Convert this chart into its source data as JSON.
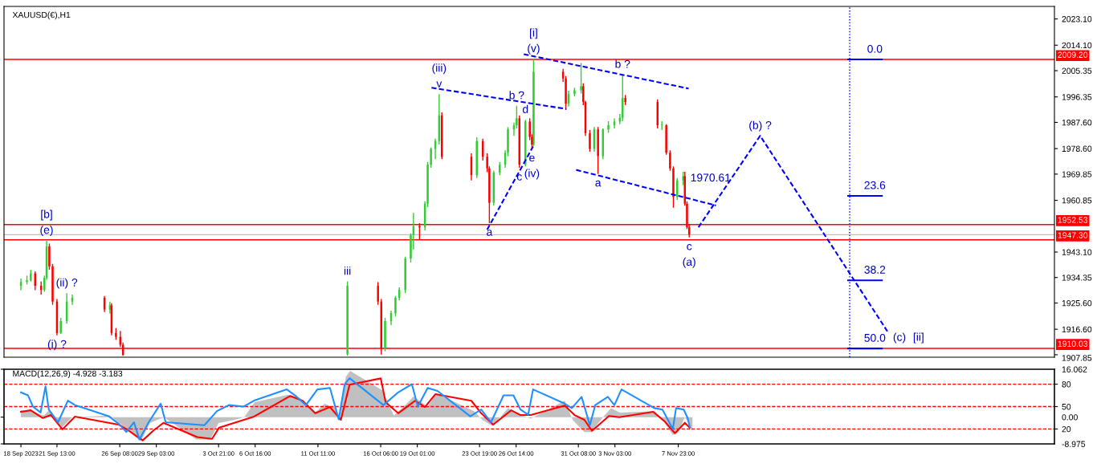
{
  "chart_data": [
    {
      "type": "candlestick",
      "title": "XAUUSD(€),H1",
      "xlim": [
        "2023-09-17T12:00",
        "2023-12-06T16:00"
      ],
      "ylim": [
        1907.0,
        2027.4
      ],
      "tick_labels": "y",
      "yticks": [
        {
          "value": 2023.1,
          "label": "2023.10"
        },
        {
          "value": 2014.1,
          "label": "2014.10"
        },
        {
          "value": 2005.35,
          "label": "2005.35"
        },
        {
          "value": 1996.35,
          "label": "1996.35"
        },
        {
          "value": 1987.6,
          "label": "1987.60"
        },
        {
          "value": 1978.6,
          "label": "1978.60"
        },
        {
          "value": 1969.85,
          "label": "1969.85"
        },
        {
          "value": 1960.85,
          "label": "1960.85"
        },
        {
          "value": 1943.1,
          "label": "1943.10"
        },
        {
          "value": 1934.35,
          "label": "1934.35"
        },
        {
          "value": 1925.6,
          "label": "1925.60"
        },
        {
          "value": 1916.6,
          "label": "1916.60"
        },
        {
          "value": 1907.85,
          "label": "1907.85"
        }
      ],
      "series": [
        {
          "color": "#32cd32",
          "x": [
            "2023-09-18T19:00",
            "2023-09-19T06:00",
            "2023-09-19T13:00",
            "2023-09-20T14:00",
            "2023-09-20T18:00",
            "2023-09-21T20:00",
            "2023-09-22T07:00",
            "2023-09-22T17:00",
            "2023-09-25T14:00",
            "2023-10-13T17:00",
            "2023-10-16T14:00",
            "2023-10-17T01:00",
            "2023-10-17T09:00",
            "2023-10-17T16:00",
            "2023-10-18T03:00",
            "2023-10-18T13:00",
            "2023-10-18T18:00",
            "2023-10-19T15:00",
            "2023-10-19T20:00",
            "2023-10-20T02:00",
            "2023-10-20T10:00",
            "2023-10-20T17:00",
            "2023-10-23T14:00",
            "2023-10-24T21:00",
            "2023-10-25T08:00",
            "2023-10-25T18:00",
            "2023-10-25T23:00",
            "2023-10-26T10:00",
            "2023-10-26T15:00",
            "2023-10-27T07:00",
            "2023-10-27T22:00",
            "2023-10-30T14:00",
            "2023-10-31T01:00",
            "2023-10-31T13:00",
            "2023-11-01T13:00",
            "2023-11-02T05:00",
            "2023-11-02T15:00",
            "2023-11-03T02:00",
            "2023-11-03T12:00",
            "2023-11-03T17:00",
            "2023-11-06T17:00",
            "2023-11-07T21:00",
            "2023-11-08T08:00"
          ],
          "ohlc": [
            [
              1931.5,
              1934,
              1930,
              1932.8
            ],
            [
              1932.8,
              1935,
              1932,
              1933.4
            ],
            [
              1933.4,
              1937,
              1933,
              1935.8
            ],
            [
              1930.1,
              1935,
              1929.5,
              1934.2
            ],
            [
              1934.2,
              1947.1,
              1933.5,
              1945.0
            ],
            [
              1915.3,
              1920.5,
              1915,
              1919.4
            ],
            [
              1919.4,
              1929,
              1918.5,
              1926.1
            ],
            [
              1926.1,
              1928.5,
              1925,
              1927.4
            ],
            [
              1923.4,
              1926,
              1922,
              1924.8
            ],
            [
              1908,
              1933,
              1907.5,
              1931.5
            ],
            [
              1910,
              1920.5,
              1909,
              1919.4
            ],
            [
              1919.4,
              1923,
              1918,
              1922.1
            ],
            [
              1922.1,
              1928,
              1921,
              1927.4
            ],
            [
              1927.4,
              1931,
              1926.5,
              1930.1
            ],
            [
              1930.1,
              1941.5,
              1929,
              1940.9
            ],
            [
              1940.9,
              1949.5,
              1939.5,
              1948.9
            ],
            [
              1948.9,
              1956.5,
              1944,
              1952
            ],
            [
              1951.6,
              1960.5,
              1950.5,
              1959.7
            ],
            [
              1959.7,
              1974,
              1958.5,
              1973.1
            ],
            [
              1973.1,
              1979,
              1972,
              1978.5
            ],
            [
              1978.5,
              1982,
              1975,
              1981.2
            ],
            [
              1981.2,
              1997.3,
              1980,
              1990
            ],
            [
              1969.5,
              1982.5,
              1968.5,
              1981.2
            ],
            [
              1960,
              1971,
              1959,
              1970.4
            ],
            [
              1970.4,
              1974,
              1969.5,
              1973.1
            ],
            [
              1973.1,
              1978,
              1972,
              1977.2
            ],
            [
              1977.2,
              1986,
              1976,
              1985.2
            ],
            [
              1985.2,
              1987.5,
              1983,
              1986.6
            ],
            [
              1986.6,
              1993.3,
              1985.5,
              1989
            ],
            [
              1973.1,
              1988.5,
              1972.5,
              1987.9
            ],
            [
              1980,
              2009.4,
              1979.5,
              2005
            ],
            [
              1994,
              1998.5,
              1993,
              1997.3
            ],
            [
              1997.3,
              1999.5,
              1996.5,
              1998.6
            ],
            [
              1998.6,
              2008.0,
              1997.5,
              2000
            ],
            [
              1978.5,
              1986,
              1977.5,
              1985.2
            ],
            [
              1976,
              1985.5,
              1975,
              1985.2
            ],
            [
              1985.2,
              1988,
              1984,
              1986.6
            ],
            [
              1986.6,
              1989,
              1985.5,
              1987.9
            ],
            [
              1987.9,
              1990.5,
              1987,
              1989.2
            ],
            [
              1989.2,
              2004.0,
              1988,
              1996
            ],
            [
              1986.6,
              1988,
              1985,
              1986.8
            ],
            [
              1962,
              1968.5,
              1961,
              1967.7
            ],
            [
              1967.7,
              1970.61,
              1966,
              1969.1
            ]
          ]
        },
        {
          "color": "#ff0000",
          "x": [
            "2023-09-19T21:00",
            "2023-09-20T08:00",
            "2023-09-20T23:00",
            "2023-09-21T05:00",
            "2023-09-21T13:00",
            "2023-09-25T04:00",
            "2023-09-25T17:00",
            "2023-09-26T01:00",
            "2023-09-26T09:00",
            "2023-09-26T14:00",
            "2023-10-16T01:00",
            "2023-10-16T07:00",
            "2023-10-19T05:00",
            "2023-10-20T22:00",
            "2023-10-23T04:00",
            "2023-10-24T01:00",
            "2023-10-24T09:00",
            "2023-10-24T13:00",
            "2023-10-26T20:00",
            "2023-10-27T15:00",
            "2023-10-27T19:00",
            "2023-10-30T04:00",
            "2023-10-30T09:00",
            "2023-10-31T17:00",
            "2023-10-31T21:00",
            "2023-11-01T05:00",
            "2023-11-01T20:00",
            "2023-11-03T22:00",
            "2023-11-06T09:00",
            "2023-11-07T01:00",
            "2023-11-07T08:00",
            "2023-11-07T14:00",
            "2023-11-08T11:00",
            "2023-11-08T15:00",
            "2023-11-08T19:00"
          ],
          "ohlc": [
            [
              1935.8,
              1936.5,
              1930,
              1931.5
            ],
            [
              1931.5,
              1933,
              1928.5,
              1930.1
            ],
            [
              1945.0,
              1946,
              1937,
              1938.2
            ],
            [
              1938.2,
              1939,
              1925,
              1926.1
            ],
            [
              1926.1,
              1927,
              1914.5,
              1915.3
            ],
            [
              1927.4,
              1928,
              1922.5,
              1923.4
            ],
            [
              1924.8,
              1925.5,
              1914.5,
              1915.3
            ],
            [
              1915.3,
              1917,
              1913,
              1914.0
            ],
            [
              1914.0,
              1916,
              1910.5,
              1911.3
            ],
            [
              1911.3,
              1912,
              1907.5,
              1907.8
            ],
            [
              1931.5,
              1932.8,
              1925,
              1926.1
            ],
            [
              1926.1,
              1927,
              1907.9,
              1910
            ],
            [
              1952,
              1953,
              1947.5,
              1951.6
            ],
            [
              1990,
              1991,
              1975,
              1975.8
            ],
            [
              1975.8,
              1977,
              1967.7,
              1969.5
            ],
            [
              1981.2,
              1982,
              1974.5,
              1975.8
            ],
            [
              1975.8,
              1977,
              1970.5,
              1971.8
            ],
            [
              1971.8,
              1972.5,
              1953.0,
              1960
            ],
            [
              1989,
              1990,
              1972,
              1973.1
            ],
            [
              1987.9,
              1989,
              1981.5,
              1982.6
            ],
            [
              1982.6,
              1983.5,
              1978.5,
              1980
            ],
            [
              2005,
              2006,
              2001.5,
              2002.7
            ],
            [
              2002.7,
              2003.5,
              1991.9,
              1994
            ],
            [
              2000,
              2001,
              1993.5,
              1994.6
            ],
            [
              1994.6,
              1995,
              1983,
              1983.9
            ],
            [
              1983.9,
              1985,
              1977.5,
              1978.5
            ],
            [
              1985.2,
              1986,
              1969.9,
              1976
            ],
            [
              1996,
              1997,
              1993.5,
              1994.6
            ],
            [
              1994.6,
              1995.5,
              1985.5,
              1986.6
            ],
            [
              1986.6,
              1987,
              1976.5,
              1977.2
            ],
            [
              1977.2,
              1978,
              1971,
              1971.8
            ],
            [
              1971.8,
              1972.5,
              1958.3,
              1962
            ],
            [
              1969.1,
              1970.61,
              1959,
              1959.7
            ],
            [
              1959.7,
              1960.5,
              1951,
              1951.6
            ],
            [
              1951.6,
              1952.5,
              1948.1,
              1949.06
            ]
          ]
        },
        {
          "type": "line",
          "line_style": "dashed",
          "color": "#0000ff",
          "x": [
            "2023-10-20T03:00",
            "2023-10-30T10:00"
          ],
          "values": [
            1999.5,
            1992.2
          ]
        },
        {
          "type": "line",
          "line_style": "dashed",
          "color": "#0000ff",
          "x": [
            "2023-10-24T09:00",
            "2023-10-27T21:00"
          ],
          "values": [
            1950.8,
            1979.3
          ]
        },
        {
          "type": "line",
          "line_style": "dashed",
          "color": "#0000ff",
          "x": [
            "2023-10-27T04:00",
            "2023-11-08T18:00"
          ],
          "values": [
            2011.0,
            1999.2
          ]
        },
        {
          "type": "line",
          "line_style": "dashed",
          "color": "#0000ff",
          "x": [
            "2023-10-31T04:00",
            "2023-11-10T20:00"
          ],
          "values": [
            1971.3,
            1959.1
          ]
        },
        {
          "type": "line",
          "line_style": "dashed",
          "color": "#0000ff",
          "x": [
            "2023-11-09T12:00",
            "2023-11-14T05:00",
            "2023-11-23T22:00"
          ],
          "values": [
            1951.6,
            1983.0,
            1915.9
          ]
        },
        {
          "type": "line",
          "line_style": "solid",
          "color": "#0000ff",
          "x": [
            "2023-11-20T22:00",
            "2023-11-23T12:00"
          ],
          "values": [
            2009.2,
            2009.2
          ]
        },
        {
          "type": "line",
          "line_style": "solid",
          "color": "#0000ff",
          "x": [
            "2023-11-20T22:00",
            "2023-11-23T12:00"
          ],
          "values": [
            1962.4,
            1962.4
          ]
        },
        {
          "type": "line",
          "line_style": "solid",
          "color": "#0000ff",
          "x": [
            "2023-11-20T22:00",
            "2023-11-23T12:00"
          ],
          "values": [
            1933.4,
            1933.4
          ]
        },
        {
          "type": "line",
          "line_style": "solid",
          "color": "#0000ff",
          "x": [
            "2023-11-20T22:00",
            "2023-11-23T12:00"
          ],
          "values": [
            1910.0,
            1910.0
          ]
        }
      ],
      "ref_lines": [
        {
          "axis": "y",
          "value": 2009.2,
          "label": "2009.20",
          "color": "#ff0000"
        },
        {
          "axis": "y",
          "value": 1952.53,
          "label": "1952.53",
          "color": "#ff0000"
        },
        {
          "axis": "y",
          "value": 1947.3,
          "label": "1947.30",
          "color": "#ff0000"
        },
        {
          "axis": "y",
          "value": 1910.03,
          "label": "1910.03",
          "color": "#ff0000"
        },
        {
          "axis": "y",
          "value": 1949.06,
          "color": "#c0c0c0"
        },
        {
          "axis": "x",
          "value": "2023-11-21T01:00",
          "color": "#0000ff",
          "line_style": "dotted"
        }
      ],
      "annotations": [
        {
          "text": "(e)",
          "x": "2023-09-20T18:00",
          "y": 1947.1
        },
        {
          "text": "[b]",
          "x": "2023-09-20T18:00",
          "y": 1947.1
        },
        {
          "text": "(ii) ?",
          "x": "2023-09-22T07:00",
          "y": 1929
        },
        {
          "text": "(i) ?",
          "x": "2023-09-21T13:00",
          "y": 1914.5
        },
        {
          "text": "iii",
          "x": "2023-10-13T17:00",
          "y": 1933
        },
        {
          "text": "v",
          "x": "2023-10-20T17:00",
          "y": 1997.3
        },
        {
          "text": "(iii)",
          "x": "2023-10-20T17:00",
          "y": 1997.3
        },
        {
          "text": "b ?",
          "x": "2023-10-26T15:00",
          "y": 1993.3
        },
        {
          "text": "d",
          "x": "2023-10-27T07:00",
          "y": 1988.5
        },
        {
          "text": "(v)",
          "x": "2023-10-27T22:00",
          "y": 2009.4
        },
        {
          "text": "[i]",
          "x": "2023-10-27T22:00",
          "y": 2009.4
        },
        {
          "text": "c",
          "x": "2023-10-26T20:00",
          "y": 1972
        },
        {
          "text": "e",
          "x": "2023-10-27T19:00",
          "y": 1978.5
        },
        {
          "text": "(iv)",
          "x": "2023-10-27T19:00",
          "y": 1978.5
        },
        {
          "text": "a",
          "x": "2023-10-24T13:00",
          "y": 1953.0
        },
        {
          "text": "a",
          "x": "2023-11-01T20:00",
          "y": 1969.9
        },
        {
          "text": "b ?",
          "x": "2023-11-03T17:00",
          "y": 2004.0
        },
        {
          "text": "c",
          "x": "2023-11-08T19:00",
          "y": 1948.1
        },
        {
          "text": "(a)",
          "x": "2023-11-08T19:00",
          "y": 1948.1
        },
        {
          "text": "(b) ?",
          "x": "2023-11-14T05:00",
          "y": 1983.0
        },
        {
          "text": "(c)",
          "x": "2023-11-23T22:00",
          "y": 1915.9
        },
        {
          "text": "[ii]",
          "x": "2023-11-23T22:00",
          "y": 1915.9
        },
        {
          "text": "0.0",
          "x": "2023-11-22T23:00",
          "y": 2009.2
        },
        {
          "text": "23.6",
          "x": "2023-11-22T23:00",
          "y": 1962.4
        },
        {
          "text": "38.2",
          "x": "2023-11-22T23:00",
          "y": 1933.4
        },
        {
          "text": "50.0",
          "x": "2023-11-22T23:00",
          "y": 1910.0
        },
        {
          "text": "1970.61",
          "x": "2023-11-08T11:00",
          "y": 1970.61
        }
      ]
    },
    {
      "type": "line",
      "title": "MACD(12,26,9) -4.928 -3.183",
      "xlim": [
        "2023-09-17T12:00",
        "2023-12-06T16:00"
      ],
      "ylim": [
        -8.975,
        16.062
      ],
      "xticks": [
        {
          "value": "2023-09-18T19:00",
          "label": "18 Sep 2023"
        },
        {
          "value": "2023-09-21T13:00",
          "label": "21 Sep 13:00"
        },
        {
          "value": "2023-09-26T08:00",
          "label": "26 Sep 08:00"
        },
        {
          "value": "2023-09-29T03:00",
          "label": "29 Sep 03:00"
        },
        {
          "value": "2023-10-03T21:00",
          "label": "3 Oct 21:00"
        },
        {
          "value": "2023-10-06T16:00",
          "label": "6 Oct 16:00"
        },
        {
          "value": "2023-10-11T11:00",
          "label": "11 Oct 11:00"
        },
        {
          "value": "2023-10-16T06:00",
          "label": "16 Oct 06:00"
        },
        {
          "value": "2023-10-19T01:00",
          "label": "19 Oct 01:00"
        },
        {
          "value": "2023-10-23T19:00",
          "label": "23 Oct 19:00"
        },
        {
          "value": "2023-10-26T14:00",
          "label": "26 Oct 14:00"
        },
        {
          "value": "2023-10-31T08:00",
          "label": "31 Oct 08:00"
        },
        {
          "value": "2023-11-03T03:00",
          "label": "3 Nov 03:00"
        },
        {
          "value": "2023-11-07T23:00",
          "label": "7 Nov 23:00"
        }
      ],
      "yticks": [
        {
          "value": 16.062,
          "label": "16.062"
        },
        {
          "value": 0,
          "label": "0.00"
        },
        {
          "value": -8.975,
          "label": "-8.975"
        }
      ],
      "y2lim": [
        0,
        100
      ],
      "y2ticks": [
        80,
        50,
        20
      ],
      "series": [
        {
          "type": "area",
          "color": "#c0c0c0",
          "x": [
            "2023-09-18T19:00",
            "2023-09-19T16:00",
            "2023-09-20T13:00",
            "2023-09-20T23:00",
            "2023-09-21T10:00",
            "2023-09-21T22:00",
            "2023-09-22T17:00",
            "2023-09-25T14:00",
            "2023-09-26T11:00",
            "2023-09-27T08:00",
            "2023-09-27T23:00",
            "2023-09-28T15:00",
            "2023-09-29T17:00",
            "2023-10-02T04:00",
            "2023-10-03T06:00",
            "2023-10-03T21:00",
            "2023-10-04T23:00",
            "2023-10-05T20:00",
            "2023-10-06T15:00",
            "2023-10-09T04:00",
            "2023-10-10T01:00",
            "2023-10-11T06:00",
            "2023-10-11T23:00",
            "2023-10-12T20:00",
            "2023-10-13T02:00",
            "2023-10-13T14:00",
            "2023-10-13T22:00",
            "2023-10-16T09:00",
            "2023-10-17T06:00",
            "2023-10-18T03:00",
            "2023-10-18T18:00",
            "2023-10-19T20:00",
            "2023-10-20T12:00",
            "2023-10-23T09:00",
            "2023-10-24T01:00",
            "2023-10-24T19:00",
            "2023-10-25T23:00",
            "2023-10-26T20:00",
            "2023-10-27T17:00",
            "2023-10-30T07:00",
            "2023-10-30T22:00",
            "2023-10-31T19:00",
            "2023-11-01T08:00",
            "2023-11-02T05:00",
            "2023-11-02T20:00",
            "2023-11-03T12:00",
            "2023-11-06T04:00",
            "2023-11-06T19:00",
            "2023-11-07T13:00",
            "2023-11-07T23:00",
            "2023-11-08T11:00",
            "2023-11-08T18:00",
            "2023-11-09T01:00"
          ],
          "values": [
            2.3,
            2.0,
            0.5,
            2.5,
            -1,
            -3.5,
            0,
            0.5,
            -2.5,
            -6,
            -8.0,
            -2,
            0,
            -7.5,
            -7.5,
            -2,
            -1,
            0,
            5,
            7.5,
            6.5,
            1.5,
            4.5,
            3,
            -1.5,
            13.5,
            15.5,
            9,
            0.5,
            4,
            7,
            3.5,
            8,
            2,
            -1,
            -3,
            3,
            1,
            -0.5,
            5.5,
            -1,
            -5,
            -5,
            0,
            3,
            1.5,
            2,
            -1,
            -6,
            -5,
            0,
            -2,
            -4.9
          ]
        },
        {
          "type": "line",
          "axis": "y2",
          "color": "#1e90ff",
          "x": [
            "2023-09-18T19:00",
            "2023-09-19T08:00",
            "2023-09-19T17:00",
            "2023-09-20T07:00",
            "2023-09-20T16:00",
            "2023-09-20T22:00",
            "2023-09-21T15:00",
            "2023-09-22T09:00",
            "2023-09-22T22:00",
            "2023-09-25T12:00",
            "2023-09-26T06:00",
            "2023-09-26T20:00",
            "2023-09-27T10:00",
            "2023-09-27T20:00",
            "2023-09-28T13:00",
            "2023-09-29T11:00",
            "2023-09-29T20:00",
            "2023-10-02T19:00",
            "2023-10-03T18:00",
            "2023-10-04T16:00",
            "2023-10-05T19:00",
            "2023-10-06T14:00",
            "2023-10-09T02:00",
            "2023-10-09T17:00",
            "2023-10-10T13:00",
            "2023-10-11T10:00",
            "2023-10-12T09:00",
            "2023-10-13T01:00",
            "2023-10-13T12:00",
            "2023-10-13T21:00",
            "2023-10-16T11:00",
            "2023-10-17T14:00",
            "2023-10-18T15:00",
            "2023-10-19T02:00",
            "2023-10-19T20:00",
            "2023-10-20T14:00",
            "2023-10-23T02:00",
            "2023-10-23T22:00",
            "2023-10-24T16:00",
            "2023-10-25T15:00",
            "2023-10-26T09:00",
            "2023-10-26T22:00",
            "2023-10-27T12:00",
            "2023-10-27T21:00",
            "2023-10-30T07:00",
            "2023-10-30T20:00",
            "2023-10-31T14:00",
            "2023-11-01T05:00",
            "2023-11-01T15:00",
            "2023-11-02T14:00",
            "2023-11-03T02:00",
            "2023-11-03T15:00",
            "2023-11-06T03:00",
            "2023-11-06T18:00",
            "2023-11-07T13:00",
            "2023-11-07T19:00",
            "2023-11-08T09:00",
            "2023-11-08T16:00",
            "2023-11-08T20:00"
          ],
          "values": [
            69,
            65,
            50,
            42,
            77,
            46,
            29,
            58,
            52,
            37,
            27,
            16,
            29,
            6,
            29,
            54,
            29,
            25,
            44,
            52,
            50,
            58,
            73,
            65,
            52,
            73,
            75,
            33,
            80,
            88,
            52,
            69,
            80,
            50,
            75,
            71,
            37,
            46,
            29,
            65,
            65,
            46,
            39,
            73,
            54,
            48,
            63,
            25,
            52,
            63,
            52,
            73,
            48,
            46,
            20,
            48,
            46,
            35,
            23
          ]
        },
        {
          "type": "line",
          "color": "#ff0000",
          "x": [
            "2023-09-18T19:00",
            "2023-09-19T13:00",
            "2023-09-20T11:00",
            "2023-09-21T02:00",
            "2023-09-21T23:00",
            "2023-09-22T22:00",
            "2023-09-26T06:00",
            "2023-09-27T01:00",
            "2023-09-28T02:00",
            "2023-09-28T21:00",
            "2023-09-29T16:00",
            "2023-10-02T06:00",
            "2023-10-03T09:00",
            "2023-10-03T22:00",
            "2023-10-05T02:00",
            "2023-10-06T14:00",
            "2023-10-09T08:00",
            "2023-10-10T07:00",
            "2023-10-11T06:00",
            "2023-10-12T09:00",
            "2023-10-13T05:00",
            "2023-10-13T21:00",
            "2023-10-16T06:00",
            "2023-10-16T15:00",
            "2023-10-17T14:00",
            "2023-10-18T21:00",
            "2023-10-19T15:00",
            "2023-10-20T10:00",
            "2023-10-23T04:00",
            "2023-10-23T22:00",
            "2023-10-24T20:00",
            "2023-10-26T05:00",
            "2023-10-26T22:00",
            "2023-10-27T17:00",
            "2023-10-30T07:00",
            "2023-10-31T01:00",
            "2023-10-31T19:00",
            "2023-11-01T09:00",
            "2023-11-02T16:00",
            "2023-11-03T11:00",
            "2023-11-06T01:00",
            "2023-11-06T22:00",
            "2023-11-07T17:00",
            "2023-11-08T11:00",
            "2023-11-08T20:00"
          ],
          "values": [
            1.8,
            2.3,
            -0.3,
            0.7,
            -4.1,
            0.2,
            -2.5,
            -4.6,
            -7.8,
            -4.6,
            -1.9,
            -6.7,
            -7.3,
            -3.5,
            -1.9,
            0.2,
            7.1,
            5.5,
            1.3,
            3.4,
            -0.9,
            10.9,
            13.0,
            5.0,
            1.3,
            5.5,
            3.4,
            7.7,
            5.5,
            1.3,
            -2.5,
            2.3,
            0.7,
            0.7,
            3.9,
            0.7,
            -0.9,
            -4.6,
            0.4,
            0,
            1.8,
            -1.4,
            -5.4,
            -1.9,
            -3.5
          ]
        }
      ],
      "ref_lines": [
        {
          "axis": "y2",
          "value": 80,
          "color": "#ff0000",
          "line_style": "dashed"
        },
        {
          "axis": "y2",
          "value": 50,
          "color": "#ff0000",
          "line_style": "dashed"
        },
        {
          "axis": "y2",
          "value": 20,
          "color": "#ff0000",
          "line_style": "dashed"
        }
      ]
    }
  ]
}
